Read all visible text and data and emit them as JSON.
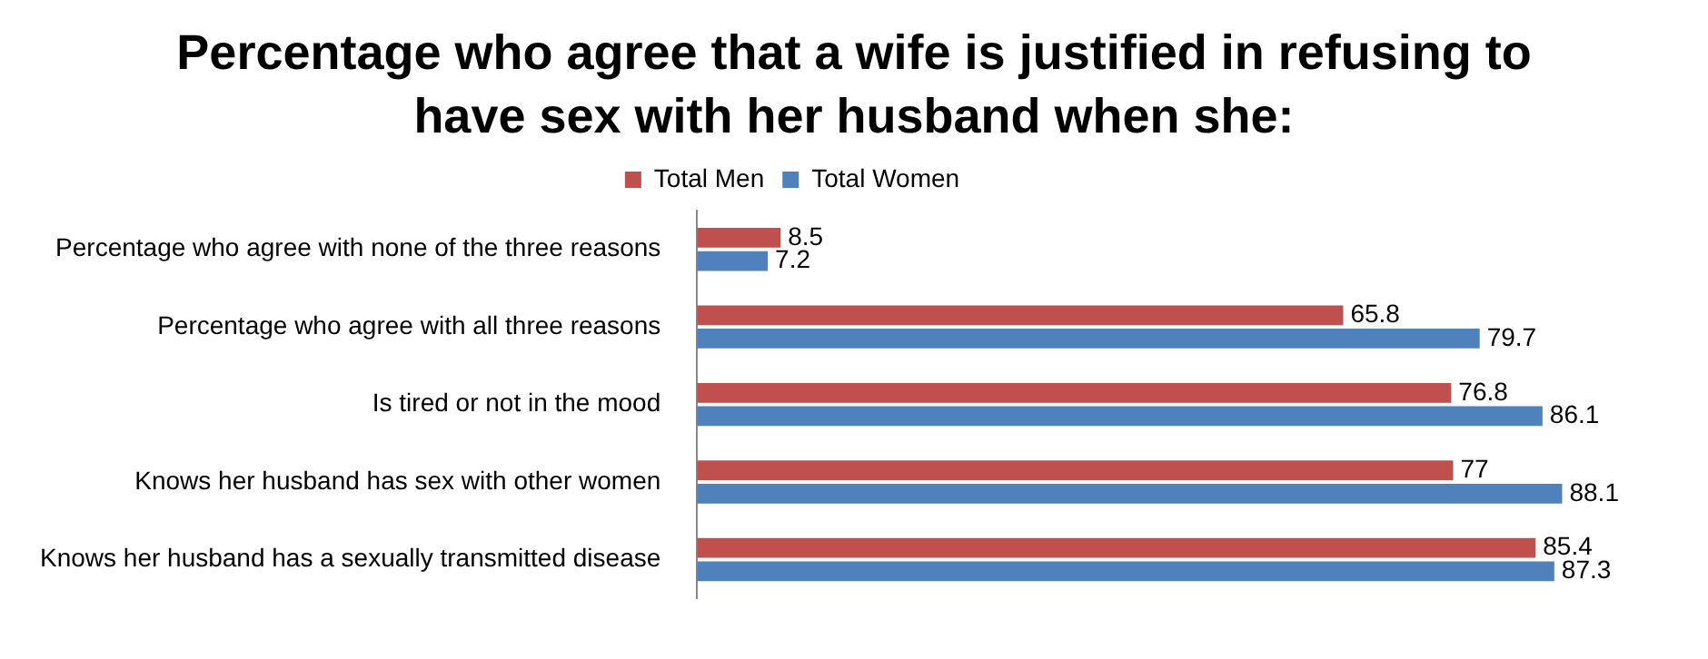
{
  "chart_data": {
    "type": "bar",
    "orientation": "horizontal",
    "title": "Percentage who agree that a wife is justified in refusing to have sex with her husband when she:",
    "categories": [
      "Percentage who agree with none of the three reasons",
      "Percentage who agree with all three reasons",
      "Is tired or not in the mood",
      "Knows her husband has sex with other women",
      "Knows her husband has a sexually transmitted disease"
    ],
    "series": [
      {
        "name": "Total Men",
        "color": "#c0504d",
        "values": [
          8.5,
          65.8,
          76.8,
          77,
          85.4
        ]
      },
      {
        "name": "Total Women",
        "color": "#4f81bd",
        "values": [
          7.2,
          79.7,
          86.1,
          88.1,
          87.3
        ]
      }
    ],
    "data_labels": true,
    "legend": "top"
  }
}
